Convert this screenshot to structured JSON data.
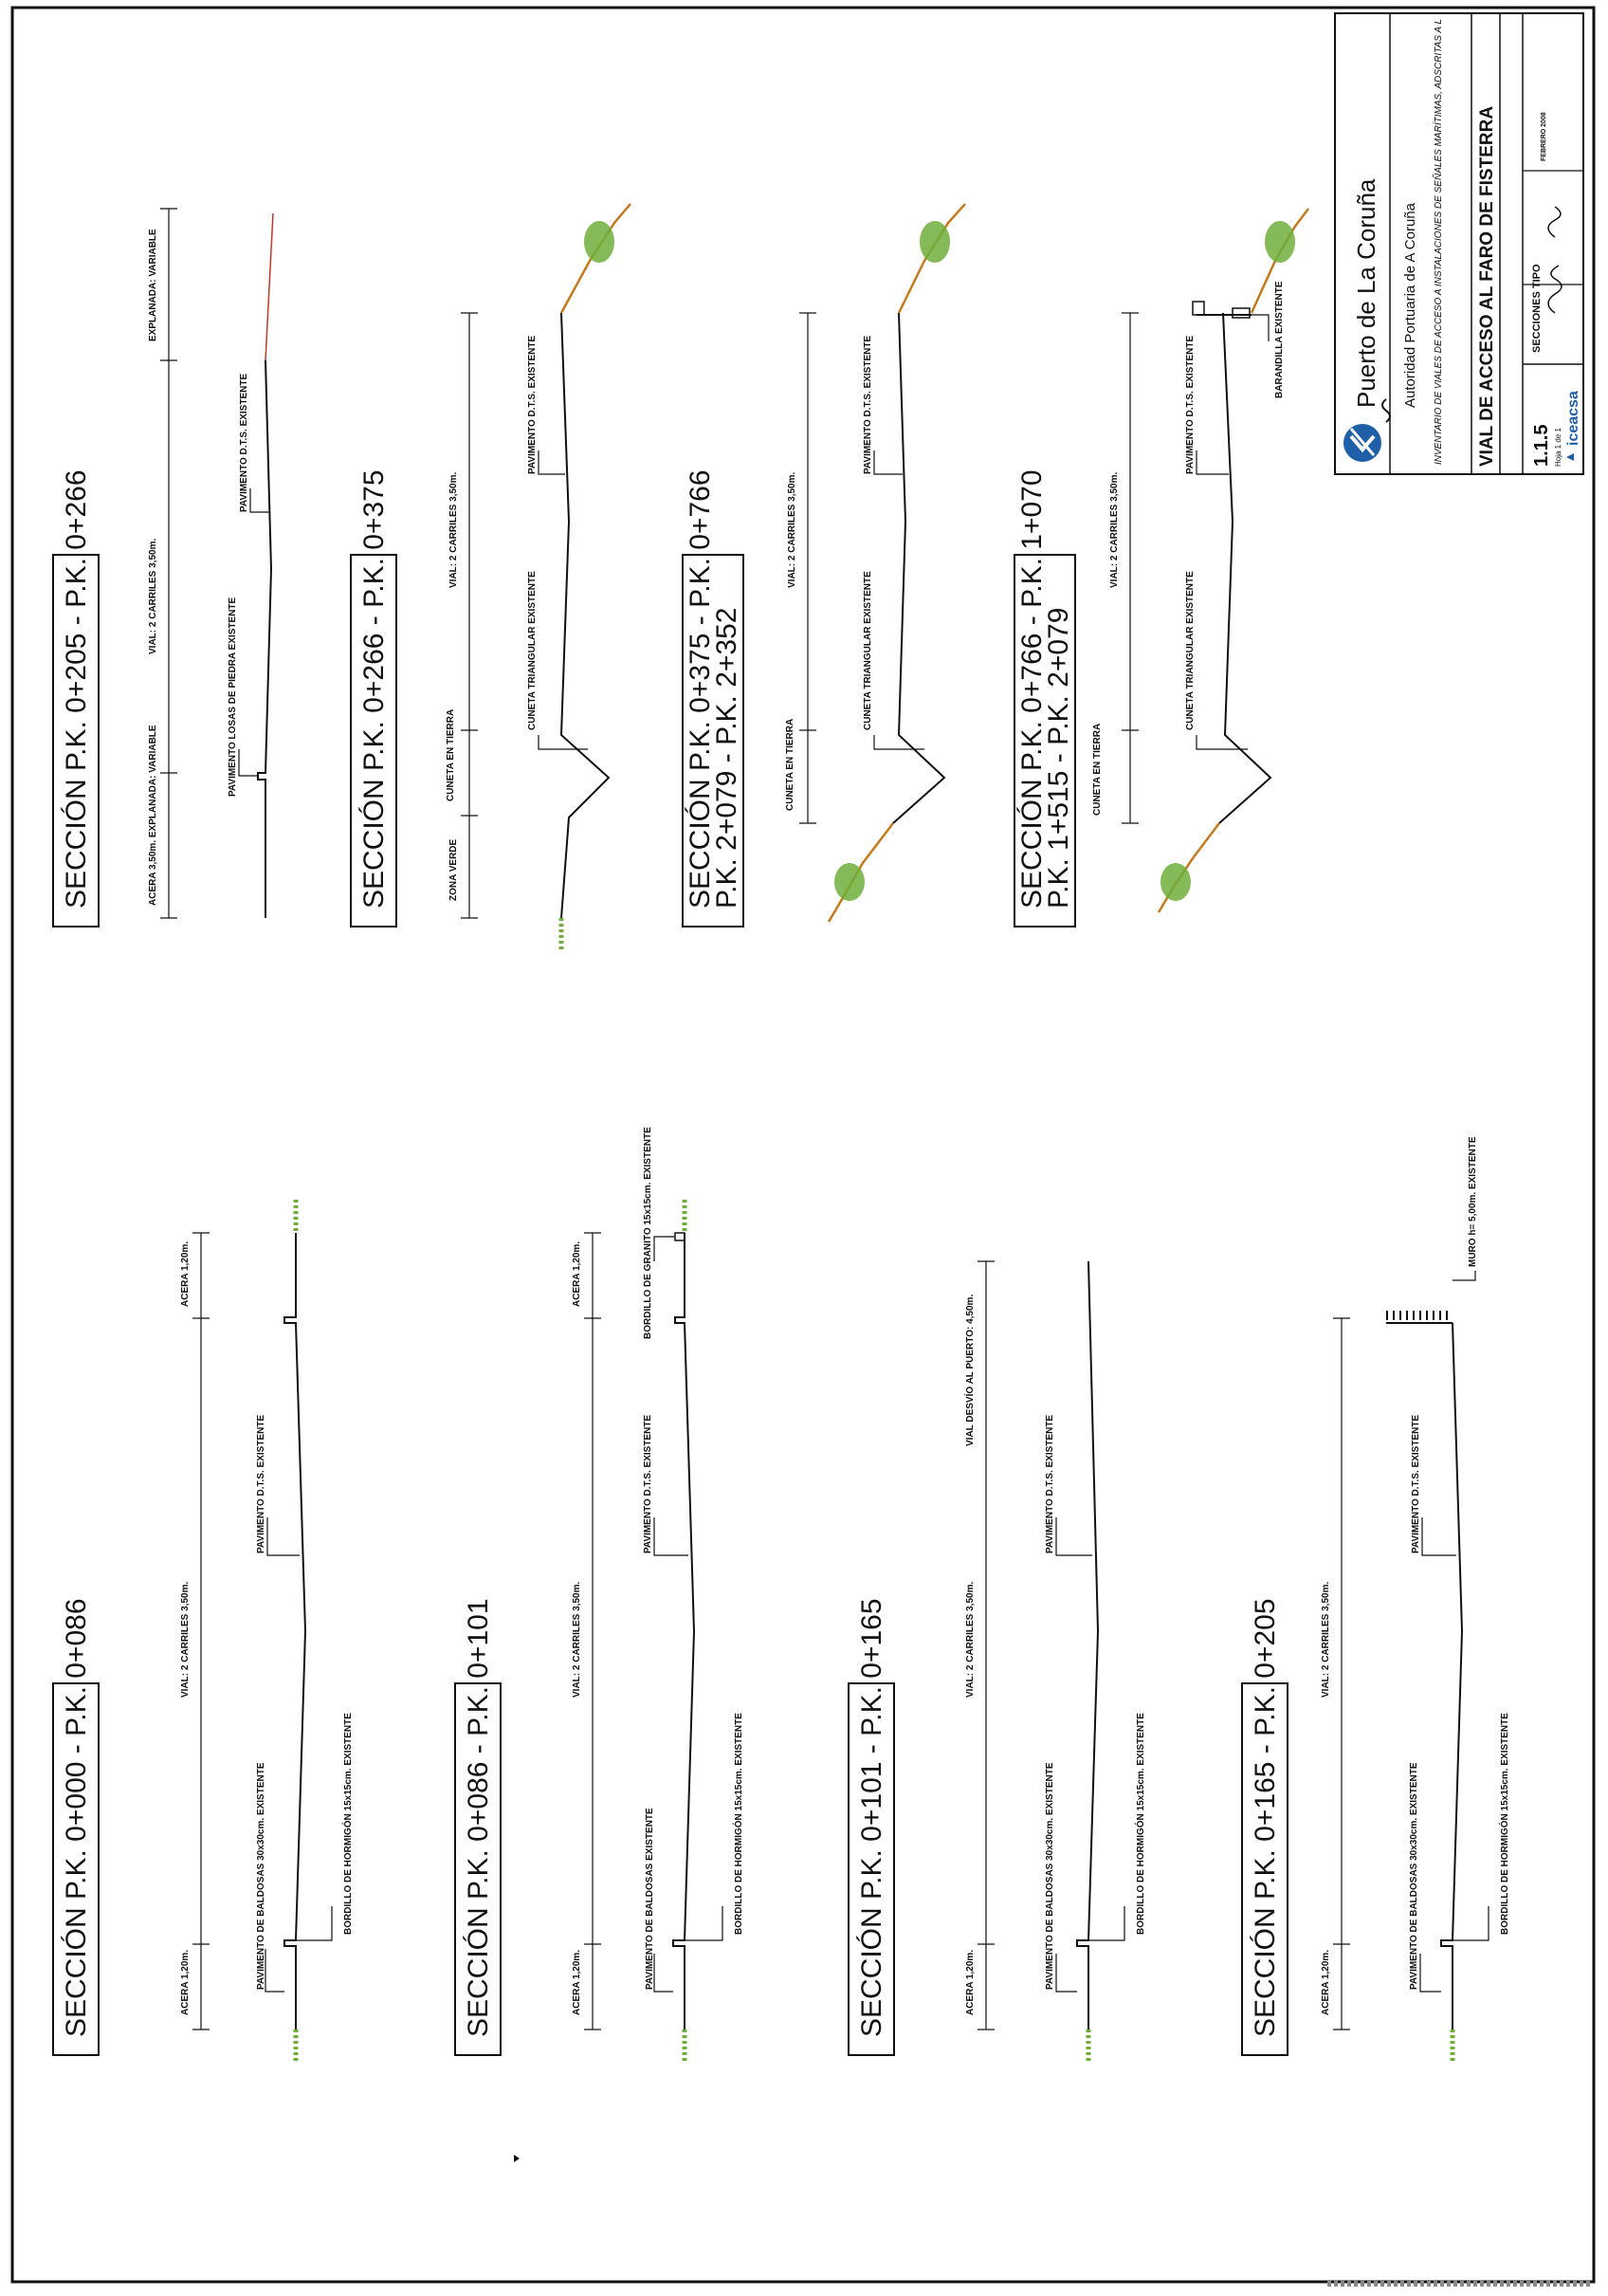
{
  "sections_left": [
    {
      "title": "SECCIÓN P.K. 0+000 - P.K. 0+086",
      "dims": [
        "ACERA 1,20m.",
        "VIAL: 2 CARRILES 3,50m.",
        "ACERA 1,20m."
      ],
      "notes": [
        "PAVIMENTO DE BALDOSAS 30x30cm. EXISTENTE",
        "BORDILLO DE HORMIGÓN 15x15cm. EXISTENTE",
        "PAVIMENTO D.T.S. EXISTENTE"
      ]
    },
    {
      "title": "SECCIÓN P.K. 0+086 - P.K. 0+101",
      "dims": [
        "ACERA 1,20m.",
        "VIAL: 2 CARRILES 3,50m.",
        "ACERA 1,20m."
      ],
      "notes": [
        "PAVIMENTO DE BALDOSAS EXISTENTE",
        "BORDILLO DE HORMIGÓN 15x15cm. EXISTENTE",
        "PAVIMENTO D.T.S. EXISTENTE",
        "BORDILLO DE GRANITO 15x15cm. EXISTENTE"
      ]
    },
    {
      "title": "SECCIÓN P.K. 0+101 - P.K. 0+165",
      "dims": [
        "ACERA 1,20m.",
        "VIAL: 2 CARRILES 3,50m.",
        "VIAL DESVÍO AL PUERTO: 4,50m."
      ],
      "notes": [
        "PAVIMENTO DE BALDOSAS 30x30cm. EXISTENTE",
        "BORDILLO DE HORMIGÓN 15x15cm. EXISTENTE",
        "PAVIMENTO D.T.S. EXISTENTE"
      ]
    },
    {
      "title": "SECCIÓN P.K. 0+165 - P.K. 0+205",
      "dims": [
        "ACERA 1,20m.",
        "VIAL: 2 CARRILES 3,50m."
      ],
      "notes": [
        "PAVIMENTO DE BALDOSAS 30x30cm. EXISTENTE",
        "BORDILLO DE HORMIGÓN 15x15cm. EXISTENTE",
        "PAVIMENTO D.T.S. EXISTENTE",
        "MURO h= 5,00m. EXISTENTE"
      ]
    }
  ],
  "sections_right": [
    {
      "title": "SECCIÓN P.K. 0+205 - P.K. 0+266",
      "dims": [
        "ACERA 3,50m. EXPLANADA: VARIABLE",
        "VIAL: 2 CARRILES 3,50m.",
        "EXPLANADA: VARIABLE"
      ],
      "notes": [
        "PAVIMENTO LOSAS DE PIEDRA EXISTENTE",
        "PAVIMENTO D.T.S. EXISTENTE"
      ]
    },
    {
      "title": "SECCIÓN P.K. 0+266 - P.K. 0+375",
      "dims": [
        "ZONA VERDE",
        "CUNETA EN TIERRA",
        "VIAL: 2 CARRILES 3,50m."
      ],
      "notes": [
        "CUNETA TRIANGULAR EXISTENTE",
        "PAVIMENTO D.T.S. EXISTENTE"
      ]
    },
    {
      "title": "SECCIÓN P.K. 0+375 - P.K. 0+766",
      "title2": "P.K. 2+079 - P.K. 2+352",
      "dims": [
        "CUNETA EN TIERRA",
        "VIAL: 2 CARRILES 3,50m."
      ],
      "notes": [
        "CUNETA TRIANGULAR EXISTENTE",
        "PAVIMENTO D.T.S. EXISTENTE"
      ]
    },
    {
      "title": "SECCIÓN P.K. 0+766 - P.K. 1+070",
      "title2": "P.K. 1+515 - P.K. 2+079",
      "dims": [
        "CUNETA EN TIERRA",
        "VIAL: 2 CARRILES 3,50m."
      ],
      "notes": [
        "CUNETA TRIANGULAR EXISTENTE",
        "PAVIMENTO D.T.S. EXISTENTE",
        "BARANDILLA EXISTENTE"
      ]
    }
  ],
  "title_block": {
    "port": "Puerto de La Coruña",
    "authority": "Autoridad Portuaria de A Coruña",
    "project": "INVENTARIO DE VIALES DE ACCESO A INSTALACIONES DE SEÑALES MARÍTIMAS, ADSCRITAS A LA AUTORIDAD PORTUARIA DE A CORUÑA.",
    "drawing_title": "VIAL DE ACCESO AL FARO DE FISTERRA",
    "subtitle": "SECCIONES TIPO",
    "number": "1.1.5",
    "sheet": "Hoja 1 de 1",
    "date": "FEBRERO 2008",
    "company": "iceacsa"
  },
  "colors": {
    "line": "#111111",
    "vegetation": "#6fae3a",
    "slope": "#c47a1e",
    "red_line": "#c0392b",
    "logo_blue": "#1f5fa8"
  }
}
